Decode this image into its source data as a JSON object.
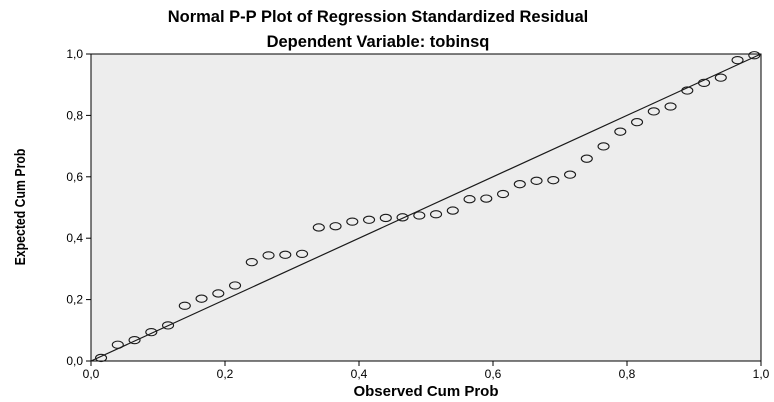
{
  "chart_data": {
    "type": "scatter",
    "title": "Normal P-P Plot of Regression Standardized Residual",
    "subtitle": "Dependent Variable: tobinsq",
    "xlabel": "Observed Cum Prob",
    "ylabel": "Expected Cum Prob",
    "xlim": [
      0.0,
      1.0
    ],
    "ylim": [
      0.0,
      1.0
    ],
    "x_ticks": [
      0.0,
      0.2,
      0.4,
      0.6,
      0.8,
      1.0
    ],
    "y_ticks": [
      0.0,
      0.2,
      0.4,
      0.6,
      0.8,
      1.0
    ],
    "x_tick_labels": [
      "0,0",
      "0,2",
      "0,4",
      "0,6",
      "0,8",
      "1,0"
    ],
    "y_tick_labels": [
      "0,0",
      "0,2",
      "0,4",
      "0,6",
      "0,8",
      "1,0"
    ],
    "reference_line": [
      [
        0.0,
        0.0
      ],
      [
        1.0,
        1.0
      ]
    ],
    "grid": false,
    "colors": {
      "background": "#ededed",
      "points": "#1a1a1a",
      "line": "#1a1a1a"
    },
    "points": [
      {
        "x": 0.015,
        "y": 0.01
      },
      {
        "x": 0.04,
        "y": 0.053
      },
      {
        "x": 0.065,
        "y": 0.068
      },
      {
        "x": 0.09,
        "y": 0.094
      },
      {
        "x": 0.115,
        "y": 0.116
      },
      {
        "x": 0.14,
        "y": 0.18
      },
      {
        "x": 0.165,
        "y": 0.203
      },
      {
        "x": 0.19,
        "y": 0.22
      },
      {
        "x": 0.215,
        "y": 0.246
      },
      {
        "x": 0.24,
        "y": 0.322
      },
      {
        "x": 0.265,
        "y": 0.344
      },
      {
        "x": 0.29,
        "y": 0.346
      },
      {
        "x": 0.315,
        "y": 0.349
      },
      {
        "x": 0.34,
        "y": 0.435
      },
      {
        "x": 0.365,
        "y": 0.439
      },
      {
        "x": 0.39,
        "y": 0.454
      },
      {
        "x": 0.415,
        "y": 0.46
      },
      {
        "x": 0.44,
        "y": 0.466
      },
      {
        "x": 0.465,
        "y": 0.468
      },
      {
        "x": 0.49,
        "y": 0.474
      },
      {
        "x": 0.515,
        "y": 0.478
      },
      {
        "x": 0.54,
        "y": 0.49
      },
      {
        "x": 0.565,
        "y": 0.527
      },
      {
        "x": 0.59,
        "y": 0.529
      },
      {
        "x": 0.615,
        "y": 0.544
      },
      {
        "x": 0.64,
        "y": 0.576
      },
      {
        "x": 0.665,
        "y": 0.587
      },
      {
        "x": 0.69,
        "y": 0.589
      },
      {
        "x": 0.715,
        "y": 0.607
      },
      {
        "x": 0.74,
        "y": 0.659
      },
      {
        "x": 0.765,
        "y": 0.699
      },
      {
        "x": 0.79,
        "y": 0.747
      },
      {
        "x": 0.815,
        "y": 0.778
      },
      {
        "x": 0.84,
        "y": 0.813
      },
      {
        "x": 0.865,
        "y": 0.829
      },
      {
        "x": 0.89,
        "y": 0.881
      },
      {
        "x": 0.915,
        "y": 0.906
      },
      {
        "x": 0.94,
        "y": 0.923
      },
      {
        "x": 0.965,
        "y": 0.98
      },
      {
        "x": 0.99,
        "y": 0.996
      }
    ]
  }
}
